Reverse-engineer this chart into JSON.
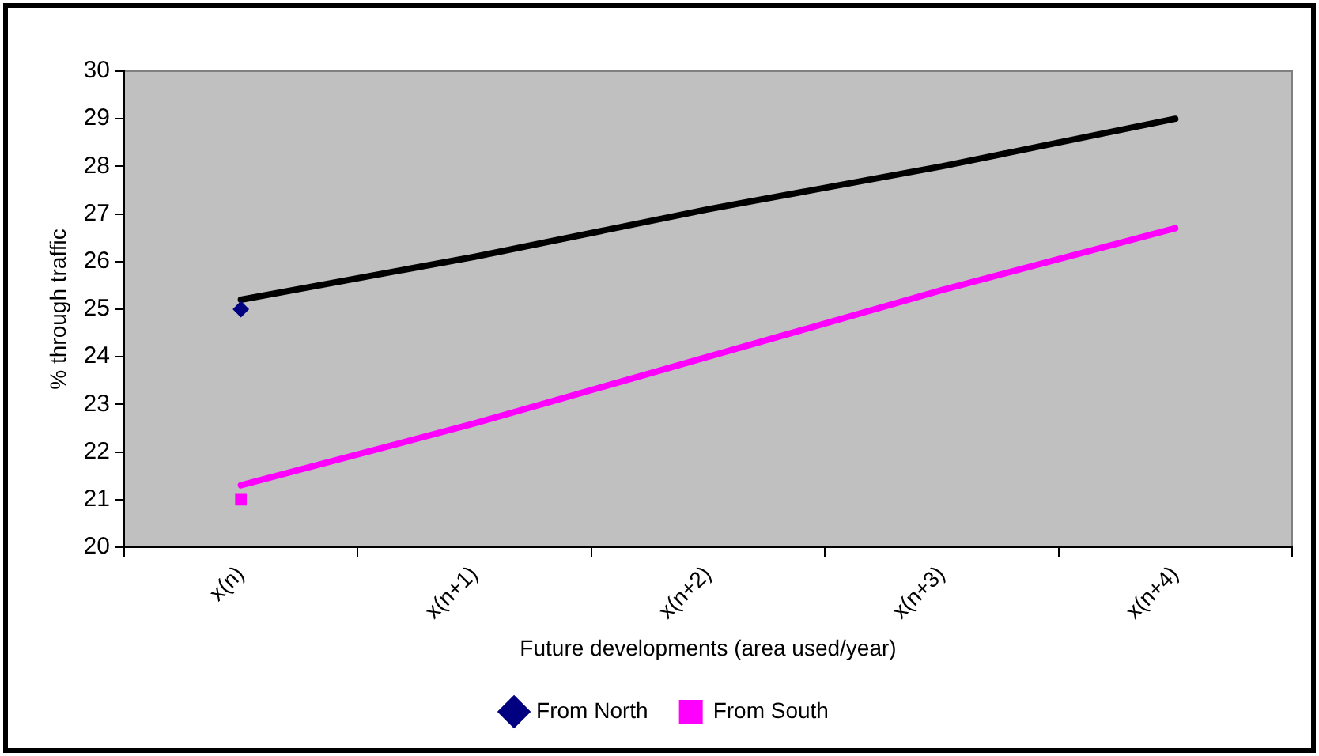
{
  "chart_data": {
    "type": "line",
    "xlabel": "Future developments (area used/year)",
    "ylabel": "% through traffic",
    "categories": [
      "x(n)",
      "x(n+1)",
      "x(n+2)",
      "x(n+3)",
      "x(n+4)"
    ],
    "series": [
      {
        "color": "#000000",
        "values": [
          25.2,
          26.1,
          27.1,
          28.0,
          29.0
        ],
        "marker": "none"
      },
      {
        "color": "#ff00ff",
        "values": [
          21.3,
          22.6,
          24.0,
          25.4,
          26.7
        ],
        "marker": "none"
      },
      {
        "type": "scatter",
        "name": "From North",
        "color": "#000080",
        "values": [
          25,
          null,
          null,
          null,
          null
        ],
        "marker": "diamond"
      },
      {
        "type": "scatter",
        "name": "From South",
        "color": "#ff00ff",
        "values": [
          21,
          null,
          null,
          null,
          null
        ],
        "marker": "square"
      }
    ],
    "ylim": [
      20,
      30
    ],
    "yticks": [
      20,
      21,
      22,
      23,
      24,
      25,
      26,
      27,
      28,
      29,
      30
    ],
    "grid": false,
    "legend": "bottom"
  }
}
